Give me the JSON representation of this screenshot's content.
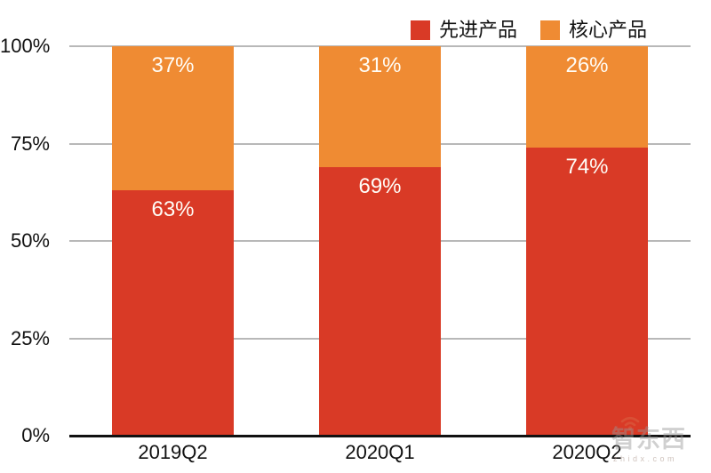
{
  "chart_data": {
    "type": "bar",
    "stacked": true,
    "orientation": "vertical",
    "categories": [
      "2019Q2",
      "2020Q1",
      "2020Q2"
    ],
    "series": [
      {
        "name": "先进产品",
        "color": "#d93a26",
        "values": [
          63,
          69,
          74
        ]
      },
      {
        "name": "核心产品",
        "color": "#ef8b33",
        "values": [
          37,
          31,
          26
        ]
      }
    ],
    "value_suffix": "%",
    "y_ticks": [
      "0%",
      "25%",
      "50%",
      "75%",
      "100%"
    ],
    "ylim": [
      0,
      100
    ],
    "grid": true,
    "gridline_color": "#b8b8b8",
    "axis_color": "#111111",
    "bar_label_color": "#ffffff",
    "legend_position": "top-right",
    "title": "",
    "xlabel": "",
    "ylabel": ""
  },
  "watermark": {
    "text": "智东西",
    "subtext": "zhidx.com",
    "icon": "wifi-icon",
    "icon_color": "#d9563a"
  }
}
